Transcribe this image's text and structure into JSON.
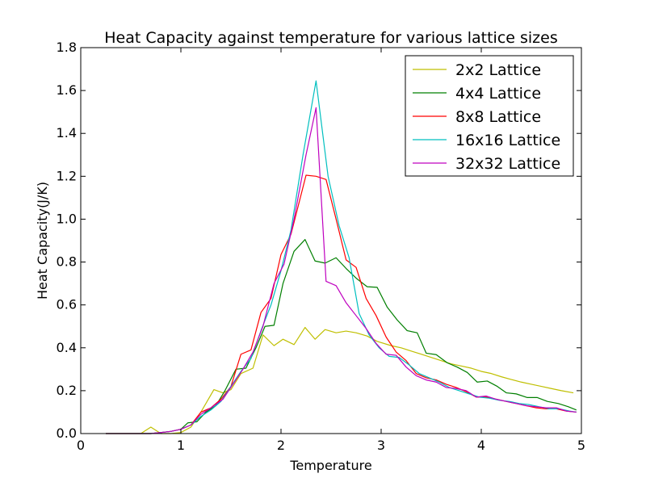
{
  "chart_data": {
    "type": "line",
    "title": "Heat Capacity against temperature for various lattice sizes",
    "xlabel": "Temperature",
    "ylabel": "Heat Capacity(J/K)",
    "xlim": [
      0,
      5
    ],
    "ylim": [
      0,
      1.8
    ],
    "xticks": [
      0,
      1,
      2,
      3,
      4,
      5
    ],
    "xtick_labels": [
      "0",
      "1",
      "2",
      "3",
      "4",
      "5"
    ],
    "yticks": [
      0.0,
      0.2,
      0.4,
      0.6,
      0.8,
      1.0,
      1.2,
      1.4,
      1.6,
      1.8
    ],
    "ytick_labels": [
      "0.0",
      "0.2",
      "0.4",
      "0.6",
      "0.8",
      "1.0",
      "1.2",
      "1.4",
      "1.6",
      "1.8"
    ],
    "grid": false,
    "legend_position": "top-right",
    "series": [
      {
        "name": "2x2 Lattice",
        "color": "#bfbf00",
        "points": [
          [
            0.25,
            0.0
          ],
          [
            0.5,
            0.0
          ],
          [
            0.6,
            0.0
          ],
          [
            0.7,
            0.03
          ],
          [
            0.8,
            0.0
          ],
          [
            0.9,
            0.0
          ],
          [
            1.0,
            0.005
          ],
          [
            1.1,
            0.03
          ],
          [
            1.2,
            0.1
          ],
          [
            1.33,
            0.205
          ],
          [
            1.42,
            0.19
          ],
          [
            1.5,
            0.205
          ],
          [
            1.6,
            0.28
          ],
          [
            1.72,
            0.305
          ],
          [
            1.82,
            0.46
          ],
          [
            1.93,
            0.41
          ],
          [
            2.02,
            0.44
          ],
          [
            2.13,
            0.415
          ],
          [
            2.24,
            0.495
          ],
          [
            2.34,
            0.44
          ],
          [
            2.44,
            0.485
          ],
          [
            2.55,
            0.47
          ],
          [
            2.65,
            0.478
          ],
          [
            2.75,
            0.47
          ],
          [
            2.86,
            0.455
          ],
          [
            2.96,
            0.43
          ],
          [
            3.1,
            0.41
          ],
          [
            3.2,
            0.4
          ],
          [
            3.3,
            0.385
          ],
          [
            3.4,
            0.37
          ],
          [
            3.5,
            0.355
          ],
          [
            3.6,
            0.34
          ],
          [
            3.7,
            0.325
          ],
          [
            3.8,
            0.315
          ],
          [
            3.9,
            0.305
          ],
          [
            4.0,
            0.29
          ],
          [
            4.1,
            0.28
          ],
          [
            4.2,
            0.265
          ],
          [
            4.3,
            0.252
          ],
          [
            4.4,
            0.24
          ],
          [
            4.5,
            0.23
          ],
          [
            4.6,
            0.22
          ],
          [
            4.7,
            0.21
          ],
          [
            4.8,
            0.2
          ],
          [
            4.92,
            0.19
          ]
        ]
      },
      {
        "name": "4x4 Lattice",
        "color": "#007f00",
        "points": [
          [
            0.25,
            0.0
          ],
          [
            0.5,
            0.0
          ],
          [
            0.7,
            0.0
          ],
          [
            0.8,
            0.005
          ],
          [
            0.9,
            0.01
          ],
          [
            1.0,
            0.02
          ],
          [
            1.07,
            0.05
          ],
          [
            1.16,
            0.055
          ],
          [
            1.25,
            0.1
          ],
          [
            1.35,
            0.13
          ],
          [
            1.44,
            0.2
          ],
          [
            1.55,
            0.3
          ],
          [
            1.65,
            0.305
          ],
          [
            1.75,
            0.4
          ],
          [
            1.84,
            0.5
          ],
          [
            1.93,
            0.505
          ],
          [
            2.02,
            0.7
          ],
          [
            2.13,
            0.85
          ],
          [
            2.24,
            0.905
          ],
          [
            2.34,
            0.805
          ],
          [
            2.44,
            0.795
          ],
          [
            2.55,
            0.82
          ],
          [
            2.65,
            0.77
          ],
          [
            2.75,
            0.725
          ],
          [
            2.86,
            0.685
          ],
          [
            2.96,
            0.682
          ],
          [
            3.06,
            0.59
          ],
          [
            3.16,
            0.53
          ],
          [
            3.26,
            0.48
          ],
          [
            3.36,
            0.47
          ],
          [
            3.45,
            0.375
          ],
          [
            3.55,
            0.368
          ],
          [
            3.66,
            0.33
          ],
          [
            3.76,
            0.31
          ],
          [
            3.86,
            0.285
          ],
          [
            3.96,
            0.24
          ],
          [
            4.06,
            0.245
          ],
          [
            4.16,
            0.22
          ],
          [
            4.25,
            0.19
          ],
          [
            4.35,
            0.185
          ],
          [
            4.46,
            0.168
          ],
          [
            4.56,
            0.168
          ],
          [
            4.66,
            0.15
          ],
          [
            4.77,
            0.14
          ],
          [
            4.87,
            0.125
          ],
          [
            4.95,
            0.11
          ]
        ]
      },
      {
        "name": "8x8 Lattice",
        "color": "#ff0000",
        "points": [
          [
            0.25,
            0.0
          ],
          [
            0.5,
            0.0
          ],
          [
            0.7,
            0.0
          ],
          [
            0.8,
            0.005
          ],
          [
            0.9,
            0.01
          ],
          [
            1.0,
            0.02
          ],
          [
            1.1,
            0.04
          ],
          [
            1.2,
            0.1
          ],
          [
            1.3,
            0.12
          ],
          [
            1.4,
            0.16
          ],
          [
            1.5,
            0.22
          ],
          [
            1.6,
            0.37
          ],
          [
            1.7,
            0.39
          ],
          [
            1.8,
            0.565
          ],
          [
            1.9,
            0.63
          ],
          [
            2.0,
            0.835
          ],
          [
            2.1,
            0.93
          ],
          [
            2.25,
            1.205
          ],
          [
            2.35,
            1.2
          ],
          [
            2.45,
            1.185
          ],
          [
            2.55,
            1.0
          ],
          [
            2.65,
            0.81
          ],
          [
            2.75,
            0.775
          ],
          [
            2.85,
            0.63
          ],
          [
            2.95,
            0.55
          ],
          [
            3.05,
            0.45
          ],
          [
            3.15,
            0.38
          ],
          [
            3.25,
            0.34
          ],
          [
            3.35,
            0.28
          ],
          [
            3.45,
            0.26
          ],
          [
            3.55,
            0.25
          ],
          [
            3.65,
            0.23
          ],
          [
            3.75,
            0.215
          ],
          [
            3.85,
            0.195
          ],
          [
            3.95,
            0.17
          ],
          [
            4.05,
            0.17
          ],
          [
            4.15,
            0.16
          ],
          [
            4.25,
            0.15
          ],
          [
            4.35,
            0.14
          ],
          [
            4.45,
            0.13
          ],
          [
            4.55,
            0.12
          ],
          [
            4.65,
            0.115
          ],
          [
            4.75,
            0.115
          ],
          [
            4.85,
            0.105
          ],
          [
            4.95,
            0.1
          ]
        ]
      },
      {
        "name": "16x16 Lattice",
        "color": "#00bfbf",
        "points": [
          [
            0.25,
            0.0
          ],
          [
            0.5,
            0.0
          ],
          [
            0.7,
            0.0
          ],
          [
            0.8,
            0.005
          ],
          [
            0.9,
            0.01
          ],
          [
            1.0,
            0.02
          ],
          [
            1.1,
            0.04
          ],
          [
            1.2,
            0.08
          ],
          [
            1.3,
            0.11
          ],
          [
            1.4,
            0.15
          ],
          [
            1.5,
            0.22
          ],
          [
            1.6,
            0.29
          ],
          [
            1.7,
            0.35
          ],
          [
            1.8,
            0.48
          ],
          [
            1.9,
            0.6
          ],
          [
            2.0,
            0.76
          ],
          [
            2.1,
            0.95
          ],
          [
            2.22,
            1.3
          ],
          [
            2.35,
            1.645
          ],
          [
            2.47,
            1.2
          ],
          [
            2.58,
            0.97
          ],
          [
            2.68,
            0.82
          ],
          [
            2.78,
            0.56
          ],
          [
            2.88,
            0.46
          ],
          [
            2.98,
            0.4
          ],
          [
            3.08,
            0.36
          ],
          [
            3.18,
            0.355
          ],
          [
            3.28,
            0.32
          ],
          [
            3.38,
            0.28
          ],
          [
            3.48,
            0.26
          ],
          [
            3.58,
            0.24
          ],
          [
            3.68,
            0.215
          ],
          [
            3.78,
            0.2
          ],
          [
            3.88,
            0.185
          ],
          [
            3.98,
            0.17
          ],
          [
            4.08,
            0.165
          ],
          [
            4.18,
            0.155
          ],
          [
            4.28,
            0.15
          ],
          [
            4.38,
            0.14
          ],
          [
            4.48,
            0.135
          ],
          [
            4.58,
            0.125
          ],
          [
            4.68,
            0.115
          ],
          [
            4.78,
            0.115
          ],
          [
            4.88,
            0.105
          ],
          [
            4.95,
            0.1
          ]
        ]
      },
      {
        "name": "32x32 Lattice",
        "color": "#bf00bf",
        "points": [
          [
            0.25,
            0.0
          ],
          [
            0.5,
            0.0
          ],
          [
            0.7,
            0.0
          ],
          [
            0.8,
            0.005
          ],
          [
            0.9,
            0.01
          ],
          [
            1.0,
            0.02
          ],
          [
            1.1,
            0.04
          ],
          [
            1.2,
            0.09
          ],
          [
            1.3,
            0.12
          ],
          [
            1.42,
            0.16
          ],
          [
            1.52,
            0.23
          ],
          [
            1.62,
            0.3
          ],
          [
            1.72,
            0.38
          ],
          [
            1.82,
            0.5
          ],
          [
            1.93,
            0.7
          ],
          [
            2.03,
            0.79
          ],
          [
            2.13,
            1.0
          ],
          [
            2.25,
            1.3
          ],
          [
            2.35,
            1.52
          ],
          [
            2.45,
            0.71
          ],
          [
            2.55,
            0.69
          ],
          [
            2.65,
            0.61
          ],
          [
            2.75,
            0.55
          ],
          [
            2.85,
            0.49
          ],
          [
            2.95,
            0.42
          ],
          [
            3.05,
            0.37
          ],
          [
            3.15,
            0.365
          ],
          [
            3.25,
            0.31
          ],
          [
            3.35,
            0.27
          ],
          [
            3.45,
            0.25
          ],
          [
            3.55,
            0.24
          ],
          [
            3.65,
            0.215
          ],
          [
            3.75,
            0.21
          ],
          [
            3.85,
            0.2
          ],
          [
            3.95,
            0.17
          ],
          [
            4.05,
            0.175
          ],
          [
            4.15,
            0.16
          ],
          [
            4.25,
            0.15
          ],
          [
            4.35,
            0.14
          ],
          [
            4.45,
            0.13
          ],
          [
            4.55,
            0.125
          ],
          [
            4.65,
            0.12
          ],
          [
            4.75,
            0.12
          ],
          [
            4.85,
            0.105
          ],
          [
            4.95,
            0.1
          ]
        ]
      }
    ]
  }
}
